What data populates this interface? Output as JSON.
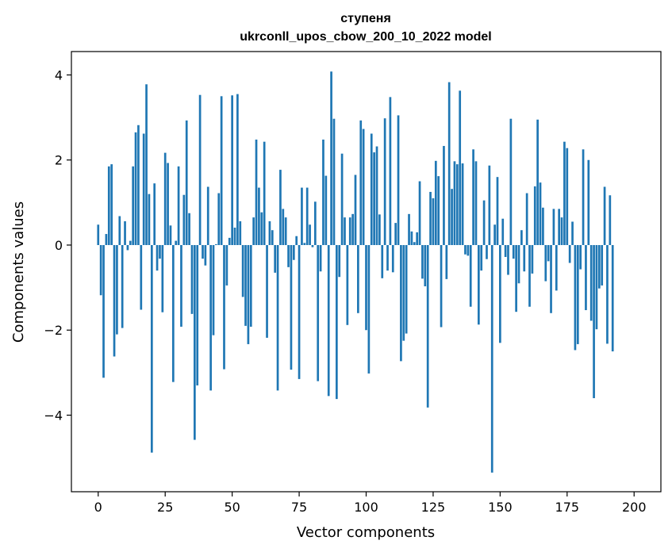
{
  "chart_data": {
    "type": "bar",
    "title": "ступеня",
    "subtitle": "ukrconll_upos_cbow_200_10_2022 model",
    "xlabel": "Vector components",
    "ylabel": "Components values",
    "xlim": [
      -10,
      210
    ],
    "ylim": [
      -5.8,
      4.55
    ],
    "xticks": [
      0,
      25,
      50,
      75,
      100,
      125,
      150,
      175,
      200
    ],
    "yticks": [
      -4,
      -2,
      0,
      2,
      4
    ],
    "bar_color": "#1f77b4",
    "grid": false,
    "values": [
      0.48,
      -1.18,
      -3.12,
      0.26,
      1.85,
      1.9,
      -2.62,
      -2.1,
      0.68,
      -1.95,
      0.56,
      -0.12,
      0.1,
      1.85,
      2.65,
      2.82,
      -1.52,
      2.62,
      3.78,
      1.2,
      -4.88,
      1.45,
      -0.6,
      -0.32,
      -1.58,
      2.17,
      1.93,
      0.46,
      -3.22,
      0.1,
      1.85,
      -1.92,
      1.18,
      2.93,
      0.75,
      -1.62,
      -4.58,
      -3.3,
      3.53,
      -0.32,
      -0.48,
      1.37,
      -3.42,
      -2.12,
      0.02,
      1.22,
      3.5,
      -2.92,
      -0.95,
      0.17,
      3.52,
      0.41,
      3.55,
      0.56,
      -1.22,
      -1.9,
      -2.33,
      -1.92,
      0.65,
      2.48,
      1.35,
      0.77,
      2.43,
      -2.18,
      0.56,
      0.35,
      -0.65,
      -3.42,
      1.77,
      0.85,
      0.65,
      -0.52,
      -2.93,
      -0.35,
      0.21,
      -3.15,
      1.35,
      0.05,
      1.35,
      0.48,
      -0.05,
      1.02,
      -3.2,
      -0.62,
      2.48,
      1.63,
      -3.55,
      4.08,
      2.97,
      -3.62,
      -0.75,
      2.15,
      0.65,
      -1.88,
      0.65,
      0.73,
      1.65,
      -1.6,
      2.93,
      2.73,
      -2.0,
      -3.02,
      2.62,
      2.18,
      2.32,
      0.72,
      -0.78,
      2.98,
      -0.6,
      3.48,
      -0.64,
      0.52,
      3.05,
      -2.73,
      -2.25,
      -2.08,
      0.73,
      0.32,
      0.07,
      0.3,
      1.5,
      -0.79,
      -0.97,
      -3.82,
      1.25,
      1.1,
      1.98,
      1.62,
      -1.93,
      2.33,
      -0.8,
      3.83,
      1.32,
      1.97,
      1.9,
      3.63,
      1.92,
      -0.22,
      -0.25,
      -1.45,
      2.25,
      1.97,
      -1.87,
      -0.6,
      1.05,
      -0.33,
      1.87,
      -5.35,
      0.48,
      1.6,
      -2.3,
      0.62,
      -0.28,
      -0.7,
      2.97,
      -0.32,
      -1.57,
      -0.9,
      0.35,
      -0.62,
      1.22,
      -1.45,
      -0.67,
      1.38,
      2.95,
      1.47,
      0.88,
      -0.85,
      -0.38,
      -1.6,
      0.85,
      -1.07,
      0.85,
      0.65,
      2.43,
      2.28,
      -0.42,
      0.55,
      -2.47,
      -2.33,
      -0.57,
      2.25,
      -1.53,
      2.0,
      -1.78,
      -3.6,
      -1.98,
      -1.02,
      -0.95,
      1.37,
      -2.32,
      1.17,
      -2.5
    ]
  }
}
